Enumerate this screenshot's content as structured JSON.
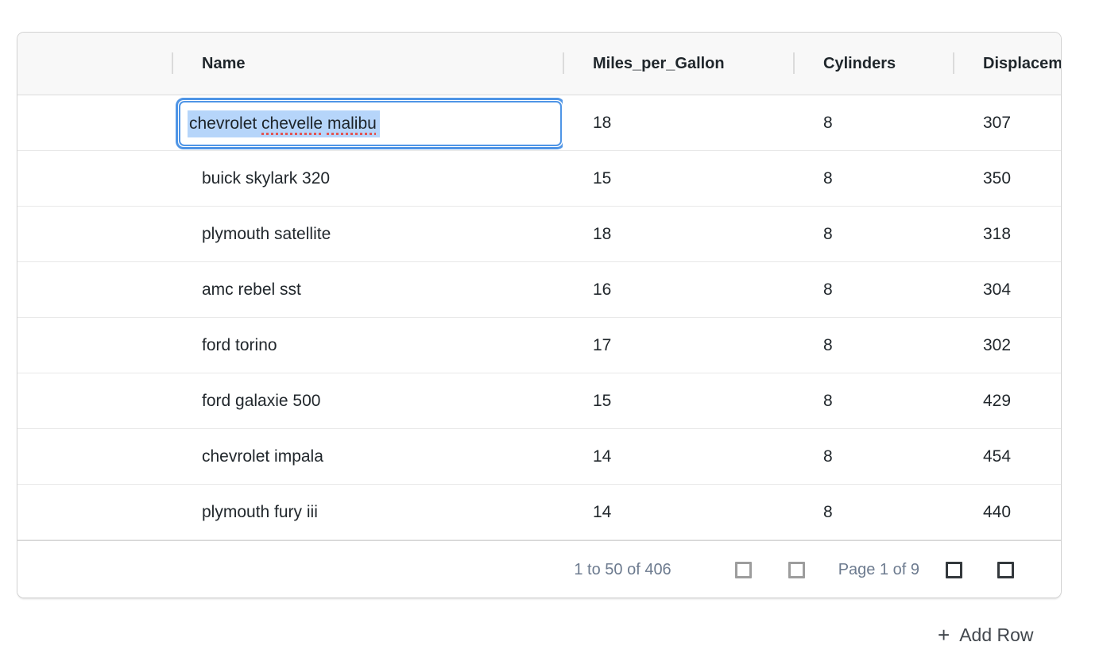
{
  "grid": {
    "columns": [
      {
        "label": ""
      },
      {
        "label": "Name"
      },
      {
        "label": "Miles_per_Gallon"
      },
      {
        "label": "Cylinders"
      },
      {
        "label": "Displacement"
      }
    ],
    "editor": {
      "value": "chevrolet chevelle malibu",
      "value_parts": [
        {
          "text": "chevrolet ",
          "misspelled": false
        },
        {
          "text": "chevelle",
          "misspelled": true
        },
        {
          "text": " ",
          "misspelled": false
        },
        {
          "text": "malibu",
          "misspelled": true
        }
      ],
      "selection_color": "#b6d5fa",
      "focus_ring_color": "#4f95e6",
      "spellcheck_color": "#e25553"
    },
    "rows": [
      {
        "name": "chevrolet chevelle malibu",
        "mpg": "18",
        "cylinders": "8",
        "displacement": "307"
      },
      {
        "name": "buick skylark 320",
        "mpg": "15",
        "cylinders": "8",
        "displacement": "350"
      },
      {
        "name": "plymouth satellite",
        "mpg": "18",
        "cylinders": "8",
        "displacement": "318"
      },
      {
        "name": "amc rebel sst",
        "mpg": "16",
        "cylinders": "8",
        "displacement": "304"
      },
      {
        "name": "ford torino",
        "mpg": "17",
        "cylinders": "8",
        "displacement": "302"
      },
      {
        "name": "ford galaxie 500",
        "mpg": "15",
        "cylinders": "8",
        "displacement": "429"
      },
      {
        "name": "chevrolet impala",
        "mpg": "14",
        "cylinders": "8",
        "displacement": "454"
      },
      {
        "name": "plymouth fury iii",
        "mpg": "14",
        "cylinders": "8",
        "displacement": "440"
      }
    ],
    "pagination": {
      "summary": "1 to 50 of 406",
      "page_status": "Page 1 of 9",
      "buttons": [
        {
          "icon": "first-page-icon",
          "disabled": true
        },
        {
          "icon": "previous-page-icon",
          "disabled": true
        },
        {
          "icon": "next-page-icon",
          "disabled": false
        },
        {
          "icon": "last-page-icon",
          "disabled": false
        }
      ],
      "text_color": "#6d7b8f"
    },
    "header_bg": "#f8f8f8"
  },
  "actions": {
    "add_row_icon": "+",
    "add_row_label": "Add Row"
  }
}
